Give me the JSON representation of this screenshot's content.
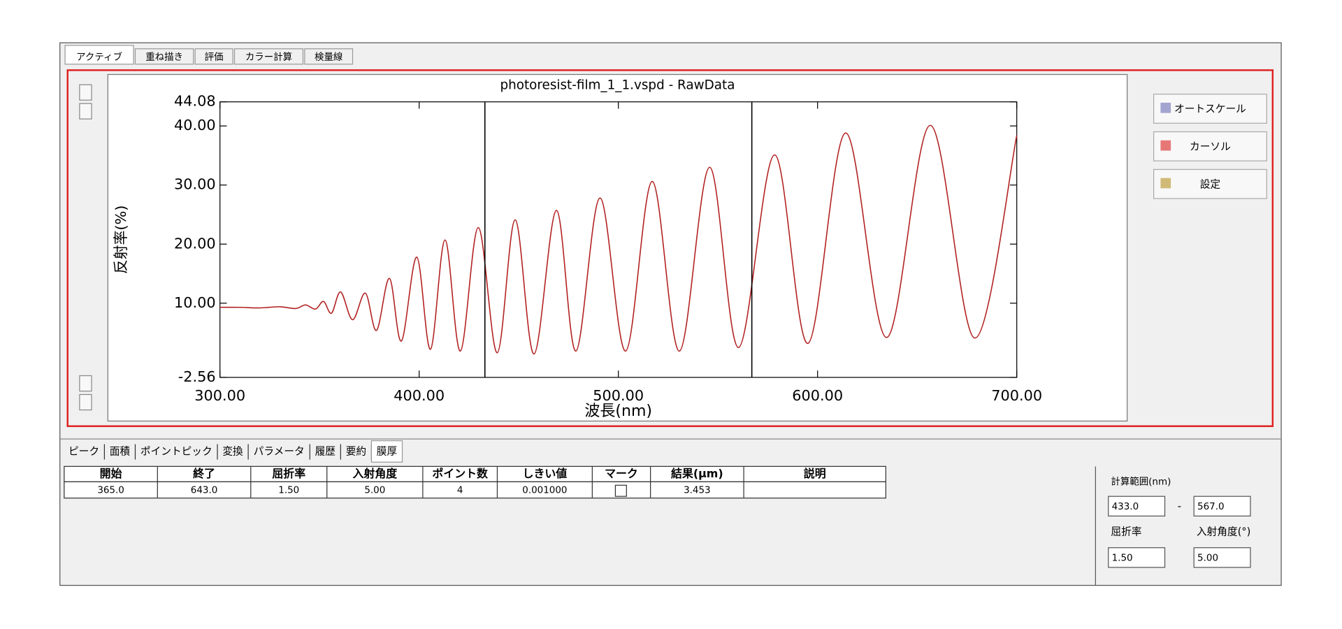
{
  "tabs": [
    "アクティブ",
    "重ね描き",
    "評価",
    "カラー計算",
    "検量線"
  ],
  "chart_data": {
    "type": "line",
    "title": "photoresist-film_1_1.vspd - RawData",
    "xlabel": "波長(nm)",
    "ylabel": "反射率(%)",
    "xlim": [
      300,
      700
    ],
    "xticks": [
      {
        "value": 300,
        "label": "300.00"
      },
      {
        "value": 400,
        "label": "400.00"
      },
      {
        "value": 500,
        "label": "500.00"
      },
      {
        "value": 600,
        "label": "600.00"
      },
      {
        "value": 700,
        "label": "700.00"
      }
    ],
    "ylim": [
      -2.56,
      44.08
    ],
    "yticks": [
      -2.56,
      {
        "value": 10,
        "label": "10.00"
      },
      {
        "value": 20,
        "label": "20.00"
      },
      {
        "value": 30,
        "label": "30.00"
      },
      {
        "value": 40,
        "label": "40.00"
      },
      44.08
    ],
    "cursors": [
      433,
      567
    ],
    "grid": false,
    "x": [
      300,
      310,
      320,
      330,
      338,
      343,
      348,
      352,
      356,
      360.6,
      366.6,
      373.0,
      378.6,
      385.1,
      391.1,
      398.8,
      405.7,
      413.0,
      420.7,
      429.7,
      439.2,
      448.2,
      457.7,
      468.9,
      478.7,
      490.8,
      503.7,
      517.0,
      530.7,
      545.8,
      560.4,
      578.4,
      595.2,
      614.1,
      634.7,
      656.6,
      678.9,
      700
    ],
    "series": [
      {
        "color": "#b22222",
        "values": [
          9.3,
          9.3,
          9.2,
          9.4,
          9.1,
          9.7,
          9.0,
          10.3,
          8.3,
          11.9,
          7.2,
          11.7,
          5.4,
          14.2,
          3.6,
          17.8,
          2.2,
          20.7,
          1.9,
          22.8,
          1.6,
          24.1,
          1.4,
          25.7,
          1.9,
          27.8,
          1.9,
          30.6,
          1.9,
          33.0,
          2.5,
          35.1,
          3.2,
          38.8,
          4.2,
          40.1,
          4.1,
          38.4
        ]
      }
    ]
  },
  "buttons": [
    "オートスケール",
    "カーソル",
    "設定"
  ],
  "bottom_tabs": [
    "ピーク",
    "面積",
    "ポイントピック",
    "変換",
    "パラメータ",
    "履歴",
    "要約",
    "膜厚"
  ],
  "table": {
    "headers": [
      "開始",
      "終了",
      "屈折率",
      "入射角度",
      "ポイント数",
      "しきい値",
      "マーク",
      "結果(μm)",
      "説明"
    ],
    "rows": [
      {
        "cells": [
          "365.0",
          "643.0",
          "1.50",
          "5.00",
          "4",
          "0.001000"
        ],
        "mark": false,
        "result": "3.453"
      }
    ]
  },
  "side_panel": {
    "range_label": "計算範囲(nm)",
    "range_start": "433.0",
    "separator": "-",
    "range_end": "567.0",
    "index_label": "屈折率",
    "angle_label": "入射角度(°)",
    "index": "1.50",
    "angle": "5.00"
  }
}
